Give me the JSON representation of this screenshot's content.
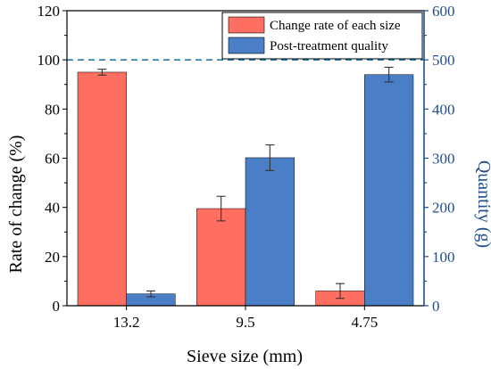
{
  "chart_data": {
    "type": "bar",
    "categories": [
      "13.2",
      "9.5",
      "4.75"
    ],
    "xlabel": "Sieve size (mm)",
    "y_left": {
      "label": "Rate of change (%)",
      "range": [
        0,
        120
      ],
      "ticks": [
        0,
        20,
        40,
        60,
        80,
        100,
        120
      ]
    },
    "y_right": {
      "label": "Quantity (g)",
      "range": [
        0,
        600
      ],
      "ticks": [
        0,
        100,
        200,
        300,
        400,
        500,
        600
      ]
    },
    "series": [
      {
        "name": "Change rate of each size",
        "axis": "left",
        "color": "#ff6f61",
        "values": [
          95.0,
          39.5,
          6.0
        ],
        "errors": [
          1.2,
          5.0,
          3.0
        ]
      },
      {
        "name": "Post-treatment quality",
        "axis": "right",
        "color": "#4a7fc8",
        "values": [
          24,
          301,
          470
        ],
        "errors": [
          6,
          26,
          15
        ]
      }
    ],
    "reference_line": {
      "axis": "right",
      "value": 500,
      "style": "dashed",
      "color": "#1a7fae"
    },
    "legend_position": "top-right",
    "grid": false
  }
}
